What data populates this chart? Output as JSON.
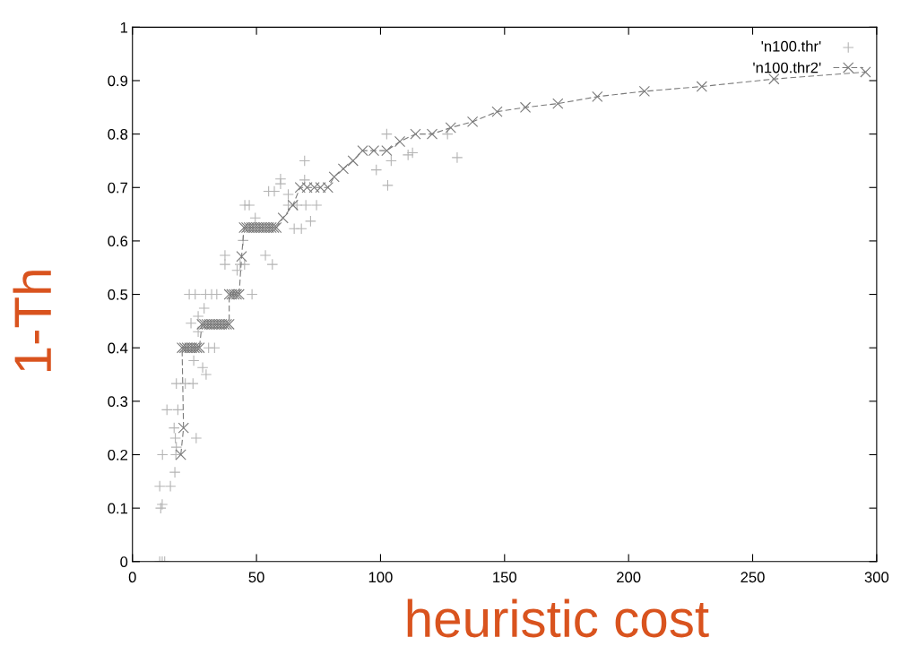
{
  "chart_data": {
    "type": "scatter",
    "xlabel": "heuristic cost",
    "ylabel": "1-Th",
    "xlim": [
      0,
      300
    ],
    "xticks": [
      0,
      50,
      100,
      150,
      200,
      250,
      300
    ],
    "ylim": [
      0,
      1
    ],
    "yticks": [
      0,
      0.1,
      0.2,
      0.3,
      0.4,
      0.5,
      0.6,
      0.7,
      0.8,
      0.9,
      1
    ],
    "grid": false,
    "legend": "top right",
    "series": [
      {
        "name": "'n100.thr'",
        "marker": "cross",
        "color": "#b4b4b4",
        "x": [
          11,
          12,
          13,
          11.4,
          12,
          11,
          15.3,
          17.1,
          12.1,
          17.5,
          17.7,
          17.3,
          25.7,
          16.8,
          13.9,
          18.3,
          17.7,
          21.3,
          24.4,
          24.7,
          28.3,
          29.7,
          30.7,
          33.1,
          23.6,
          26.5,
          28.9,
          26.5,
          22.9,
          25.3,
          29.5,
          31.9,
          34.0,
          48.2,
          42.2,
          43.4,
          45.2,
          37.3,
          37.3,
          53.6,
          56.4,
          44.6,
          69.4,
          59.7,
          59.7,
          54.9,
          57.2,
          62.8,
          45.3,
          47.1,
          62.8,
          66.3,
          69.9,
          74.2,
          49.5,
          69.4,
          71.8,
          65.2,
          68.1,
          98.3,
          102.9,
          104.3,
          102.5,
          111.1,
          112.9,
          127,
          130.9
        ],
        "values": [
          0,
          0,
          0,
          0.1,
          0.107,
          0.141,
          0.141,
          0.167,
          0.2,
          0.2,
          0.214,
          0.231,
          0.231,
          0.25,
          0.284,
          0.284,
          0.333,
          0.333,
          0.333,
          0.376,
          0.363,
          0.35,
          0.4,
          0.4,
          0.446,
          0.459,
          0.474,
          0.43,
          0.5,
          0.5,
          0.5,
          0.5,
          0.5,
          0.5,
          0.545,
          0.556,
          0.556,
          0.556,
          0.573,
          0.573,
          0.556,
          0.601,
          0.75,
          0.716,
          0.707,
          0.693,
          0.693,
          0.687,
          0.667,
          0.667,
          0.667,
          0.667,
          0.667,
          0.667,
          0.643,
          0.714,
          0.637,
          0.623,
          0.623,
          0.733,
          0.704,
          0.75,
          0.8,
          0.761,
          0.765,
          0.8,
          0.756
        ]
      },
      {
        "name": "'n100.thr2'",
        "type": "line",
        "marker": "cross",
        "line_style": "dashed",
        "color": "#7a7a7a",
        "x": [
          19.5,
          20.6,
          20,
          21,
          22,
          23,
          24,
          25,
          26,
          27,
          28,
          29,
          30,
          31,
          32,
          33,
          34,
          35,
          36,
          37,
          38,
          39,
          39,
          40,
          41,
          42,
          43,
          44,
          45,
          46,
          47,
          48,
          49,
          50,
          51,
          52,
          53,
          54,
          55,
          56,
          57,
          58,
          60.7,
          64.7,
          67.6,
          70.4,
          73.3,
          75.8,
          78.8,
          81.3,
          85,
          88.9,
          92.8,
          97.3,
          102.5,
          107.8,
          114.1,
          120.8,
          128.3,
          137.1,
          147,
          158.4,
          171.5,
          187.4,
          206.4,
          229.5,
          258.6,
          295.5
        ],
        "values": [
          0.2,
          0.25,
          0.4,
          0.4,
          0.4,
          0.4,
          0.4,
          0.4,
          0.4,
          0.4,
          0.444,
          0.444,
          0.444,
          0.444,
          0.444,
          0.444,
          0.444,
          0.444,
          0.444,
          0.444,
          0.444,
          0.444,
          0.5,
          0.5,
          0.5,
          0.5,
          0.5,
          0.571,
          0.625,
          0.625,
          0.625,
          0.625,
          0.625,
          0.625,
          0.625,
          0.625,
          0.625,
          0.625,
          0.625,
          0.625,
          0.625,
          0.625,
          0.643,
          0.667,
          0.7,
          0.7,
          0.7,
          0.7,
          0.7,
          0.72,
          0.735,
          0.75,
          0.769,
          0.769,
          0.769,
          0.786,
          0.8,
          0.8,
          0.812,
          0.823,
          0.842,
          0.85,
          0.857,
          0.87,
          0.88,
          0.889,
          0.903,
          0.916
        ]
      }
    ]
  }
}
